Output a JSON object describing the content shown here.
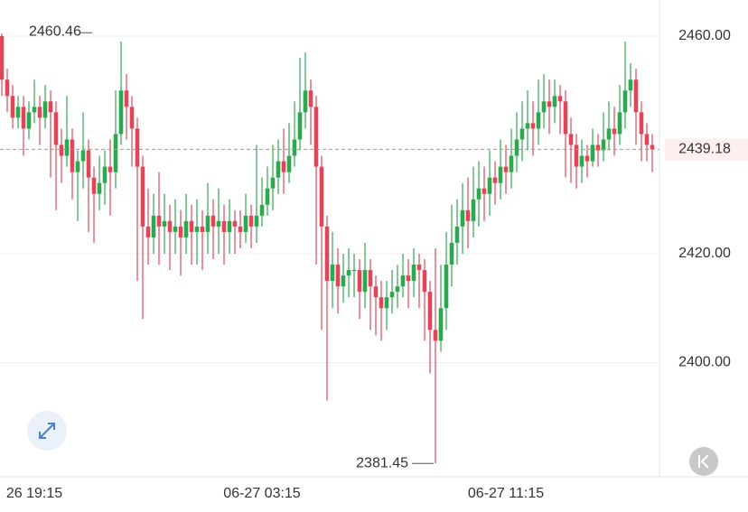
{
  "chart_data": {
    "type": "candlestick",
    "up_color": "#2ea84f",
    "down_color": "#e0465a",
    "categories": [
      null,
      null,
      null,
      null,
      null,
      null,
      "26 19:15",
      null,
      null,
      null,
      null,
      null,
      null,
      null,
      null,
      null,
      null,
      null,
      null,
      null,
      null,
      null,
      null,
      null,
      null,
      null,
      null,
      null,
      null,
      null,
      null,
      null,
      null,
      null,
      null,
      null,
      null,
      null,
      null,
      null,
      null,
      null,
      null,
      null,
      null,
      null,
      null,
      null,
      "06-27 03:15",
      null,
      null,
      null,
      null,
      null,
      null,
      null,
      null,
      null,
      null,
      null,
      null,
      null,
      null,
      null,
      null,
      null,
      null,
      null,
      null,
      null,
      null,
      null,
      null,
      null,
      null,
      null,
      null,
      null,
      null,
      null,
      null,
      null,
      null,
      null,
      null,
      null,
      null,
      null,
      null,
      null,
      null,
      null,
      null,
      "06-27 11:15",
      null,
      null,
      null,
      null,
      null,
      null,
      null,
      null,
      null,
      null,
      null,
      null,
      null,
      null,
      null,
      null,
      null,
      null,
      null,
      null,
      null,
      null,
      null,
      null,
      null,
      null,
      null
    ],
    "open": [
      2460,
      2452,
      2449,
      2445,
      2447,
      2443,
      2446,
      2447,
      2445,
      2448,
      2446,
      2440,
      2438,
      2441,
      2435,
      2437,
      2439,
      2434,
      2431,
      2433,
      2436,
      2435,
      2442,
      2450,
      2447,
      2443,
      2436,
      2425,
      2423,
      2427,
      2425,
      2426,
      2424,
      2425,
      2423,
      2426,
      2424,
      2425,
      2424,
      2427,
      2425,
      2426,
      2424,
      2426,
      2425,
      2424,
      2427,
      2425,
      2427,
      2429,
      2432,
      2434,
      2437,
      2435,
      2438,
      2441,
      2446,
      2450,
      2447,
      2436,
      2425,
      2415,
      2418,
      2414,
      2416,
      2417,
      2417,
      2413,
      2417,
      2414,
      2412,
      2410,
      2412,
      2413,
      2414,
      2416,
      2415,
      2418,
      2417,
      2413,
      2406,
      2404,
      2410,
      2418,
      2422,
      2425,
      2428,
      2426,
      2430,
      2432,
      2431,
      2434,
      2433,
      2436,
      2435,
      2438,
      2441,
      2443,
      2444,
      2443,
      2446,
      2448,
      2447,
      2449,
      2448,
      2442,
      2440,
      2436,
      2438,
      2437,
      2440,
      2439,
      2441,
      2443,
      2442,
      2446,
      2450,
      2452,
      2446,
      2442,
      2440
    ],
    "high": [
      2460.46,
      2454,
      2451,
      2449,
      2449,
      2448,
      2452,
      2449,
      2451,
      2450,
      2448,
      2443,
      2449,
      2443,
      2439,
      2446,
      2441,
      2436,
      2438,
      2439,
      2441,
      2450,
      2459,
      2453,
      2449,
      2445,
      2438,
      2432,
      2431,
      2435,
      2431,
      2429,
      2430,
      2428,
      2431,
      2429,
      2430,
      2428,
      2433,
      2430,
      2432,
      2429,
      2430,
      2428,
      2428,
      2431,
      2429,
      2440,
      2434,
      2436,
      2440,
      2441,
      2443,
      2444,
      2448,
      2456,
      2457,
      2452,
      2449,
      2438,
      2427,
      2424,
      2421,
      2420,
      2421,
      2420,
      2419,
      2422,
      2419,
      2416,
      2415,
      2415,
      2417,
      2418,
      2420,
      2419,
      2421,
      2420,
      2419,
      2415,
      2421,
      2418,
      2424,
      2429,
      2430,
      2433,
      2434,
      2436,
      2437,
      2436,
      2439,
      2437,
      2441,
      2440,
      2443,
      2446,
      2448,
      2450,
      2448,
      2452,
      2453,
      2452,
      2452,
      2451,
      2450,
      2445,
      2442,
      2441,
      2440,
      2443,
      2442,
      2446,
      2448,
      2447,
      2451,
      2459,
      2455,
      2454,
      2448,
      2444,
      2442
    ],
    "low": [
      2449,
      2446,
      2443,
      2443,
      2438,
      2441,
      2444,
      2440,
      2443,
      2434,
      2428,
      2433,
      2436,
      2430,
      2426,
      2432,
      2424,
      2422,
      2428,
      2429,
      2427,
      2432,
      2440,
      2441,
      2436,
      2415,
      2408,
      2418,
      2420,
      2418,
      2420,
      2417,
      2420,
      2416,
      2420,
      2418,
      2418,
      2417,
      2420,
      2419,
      2420,
      2418,
      2420,
      2420,
      2421,
      2422,
      2421,
      2422,
      2425,
      2427,
      2428,
      2431,
      2431,
      2433,
      2436,
      2439,
      2443,
      2440,
      2418,
      2406,
      2393,
      2410,
      2409,
      2411,
      2412,
      2412,
      2408,
      2410,
      2406,
      2405,
      2404,
      2406,
      2409,
      2410,
      2412,
      2410,
      2412,
      2410,
      2404,
      2398,
      2381.45,
      2402,
      2406,
      2414,
      2418,
      2420,
      2421,
      2423,
      2425,
      2426,
      2427,
      2429,
      2430,
      2431,
      2432,
      2435,
      2437,
      2439,
      2438,
      2440,
      2443,
      2442,
      2444,
      2442,
      2434,
      2433,
      2432,
      2433,
      2434,
      2436,
      2436,
      2437,
      2439,
      2438,
      2440,
      2443,
      2447,
      2440,
      2437,
      2437,
      2435
    ],
    "close": [
      2452,
      2449,
      2445,
      2447,
      2443,
      2446,
      2447,
      2445,
      2448,
      2446,
      2440,
      2438,
      2441,
      2435,
      2437,
      2439,
      2434,
      2431,
      2433,
      2436,
      2435,
      2442,
      2450,
      2447,
      2443,
      2436,
      2425,
      2423,
      2427,
      2425,
      2426,
      2424,
      2425,
      2423,
      2426,
      2424,
      2425,
      2424,
      2427,
      2425,
      2426,
      2424,
      2426,
      2425,
      2424,
      2427,
      2425,
      2427,
      2429,
      2432,
      2434,
      2437,
      2435,
      2438,
      2441,
      2446,
      2450,
      2447,
      2436,
      2425,
      2415,
      2418,
      2414,
      2416,
      2417,
      2417,
      2413,
      2417,
      2414,
      2412,
      2410,
      2412,
      2413,
      2414,
      2416,
      2415,
      2418,
      2417,
      2413,
      2406,
      2404,
      2410,
      2418,
      2422,
      2425,
      2428,
      2426,
      2430,
      2432,
      2431,
      2434,
      2433,
      2436,
      2435,
      2438,
      2441,
      2443,
      2444,
      2443,
      2446,
      2448,
      2447,
      2449,
      2448,
      2442,
      2440,
      2436,
      2438,
      2437,
      2440,
      2439,
      2441,
      2443,
      2442,
      2446,
      2450,
      2452,
      2446,
      2442,
      2440,
      2439.18
    ],
    "ylim": [
      2379,
      2466.64
    ],
    "yticks": [
      {
        "value": 2400,
        "label": "2400.00"
      },
      {
        "value": 2420,
        "label": "2420.00"
      },
      {
        "value": 2460,
        "label": "2460.00"
      }
    ],
    "grid": true
  }
}
